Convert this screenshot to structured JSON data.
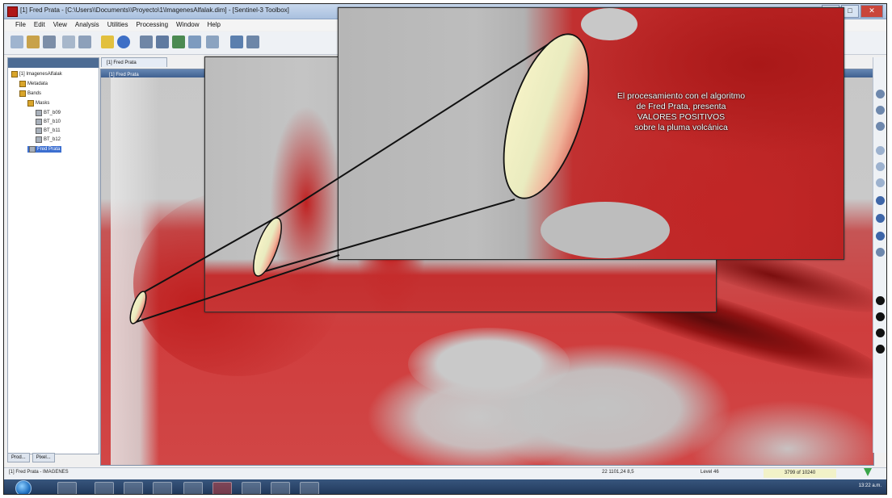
{
  "window": {
    "title": "[1] Fred Prata - [C:\\Users\\\\Documents\\\\Proyecto\\1\\ImagenesAlfalak.dim] - [Sentinel-3 Toolbox]",
    "controls": [
      "–",
      "□",
      "✕"
    ]
  },
  "menu": [
    "File",
    "Edit",
    "View",
    "Analysis",
    "Utilities",
    "Processing",
    "Window",
    "Help"
  ],
  "toolbar_icons": [
    "new-icon",
    "open-icon",
    "save-icon",
    "export-icon",
    "copy-icon",
    "globe-icon",
    "info-icon",
    "layer-icon",
    "band-icon",
    "chart-icon",
    "pin-icon",
    "graph-icon",
    "arrow-icon",
    "sum-icon"
  ],
  "product_explorer": {
    "tab_label": "Product Explorer",
    "tree": [
      {
        "label": "[1] ImagenesAlfalak",
        "level": 0
      },
      {
        "label": "Metadata",
        "level": 1
      },
      {
        "label": "Bands",
        "level": 1
      },
      {
        "label": "Masks",
        "level": 2
      },
      {
        "label": "BT_b09",
        "level": 3
      },
      {
        "label": "BT_b10",
        "level": 3
      },
      {
        "label": "BT_b11",
        "level": 3
      },
      {
        "label": "BT_b12",
        "level": 3
      },
      {
        "label": "Fred Prata",
        "level": 2
      }
    ],
    "bottom_tabs": [
      "Prod...",
      "Pixel..."
    ]
  },
  "document_tab": "[1] Fred Prata",
  "view_header": "[1] Fred Prata",
  "annotation_lines": [
    "El procesamiento con el algoritmo",
    "de Fred Prata, presenta",
    "VALORES POSITIVOS",
    "sobre la pluma volcánica"
  ],
  "status": {
    "left": "[1] Fred Prata - IMAGENES",
    "coords": "22 1101,24 8,5",
    "level": "Level 46",
    "memory": "3799 of 10240",
    "accent": "#f2f2c8"
  },
  "taskbar": {
    "clock": "13:22 a.m."
  },
  "colors": {
    "plume_red": "#c62828",
    "highlight_fill": "#f3f0c2",
    "title_bar": "#a9c0de"
  }
}
